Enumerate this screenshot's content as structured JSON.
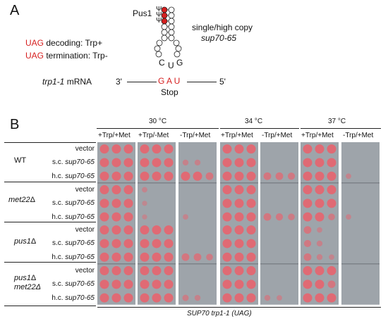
{
  "panel_a": {
    "letter": "A",
    "pus1": "Pus1",
    "psi": [
      "Ψ",
      "Ψ",
      "Ψ"
    ],
    "anticodon": [
      "C",
      "U",
      "G"
    ],
    "uag_decoding": {
      "codon": "UAG",
      "text": " decoding: Trp+"
    },
    "uag_termination": {
      "codon": "UAG",
      "text": " termination: Trp-"
    },
    "copy_label": "single/high copy",
    "copy_gene": "sup70-65",
    "mrna_gene": "trp1-1",
    "mrna_word": " mRNA",
    "end3": "3'",
    "end5": "5'",
    "codon": "G A U",
    "stop": "Stop"
  },
  "panel_b": {
    "letter": "B",
    "temperatures": [
      "30 °C",
      "34 °C",
      "37 °C"
    ],
    "media": [
      "+Trp/+Met",
      "+Trp/-Met",
      "-Trp/+Met",
      "+Trp/+Met",
      "-Trp/+Met",
      "+Trp/+Met",
      "-Trp/+Met"
    ],
    "strains": [
      {
        "name": "WT",
        "del": "",
        "line2": ""
      },
      {
        "name": "met22",
        "del": "Δ",
        "line2": ""
      },
      {
        "name": "pus1",
        "del": "Δ",
        "line2": ""
      },
      {
        "name": "pus1",
        "del": "Δ",
        "line2": "met22Δ"
      }
    ],
    "rows": [
      {
        "prefix": "",
        "gene": "vector"
      },
      {
        "prefix": "s.c. ",
        "gene": "sup70-65"
      },
      {
        "prefix": "h.c. ",
        "gene": "sup70-65"
      }
    ],
    "footer": "SUP70 trp1-1 (UAG)"
  },
  "colors": {
    "red": "#d61f1f",
    "plate_bg": "#9ea4aa",
    "colony": "#e06a74"
  }
}
